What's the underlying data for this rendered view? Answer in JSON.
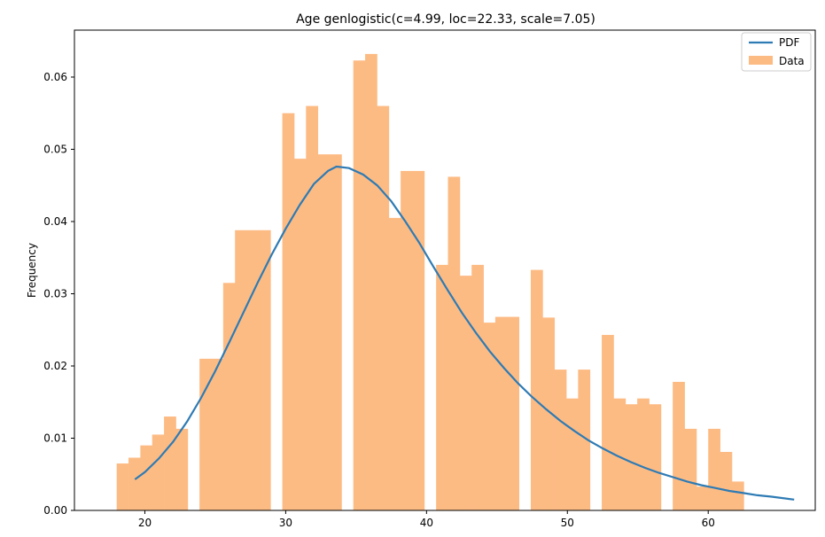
{
  "chart_data": {
    "type": "bar",
    "title": "Age genlogistic(c=4.99, loc=22.33, scale=7.05)",
    "xlabel": "",
    "ylabel": "Frequency",
    "xlim": [
      15.0,
      67.6
    ],
    "ylim": [
      0.0,
      0.0665
    ],
    "xticks": [
      20,
      30,
      40,
      50,
      60
    ],
    "yticks": [
      0.0,
      0.01,
      0.02,
      0.03,
      0.04,
      0.05,
      0.06
    ],
    "ytick_labels": [
      "0.00",
      "0.01",
      "0.02",
      "0.03",
      "0.04",
      "0.05",
      "0.06"
    ],
    "grid": false,
    "legend": {
      "placement": "top-right",
      "entries": [
        "PDF",
        "Data"
      ]
    },
    "colors": {
      "pdf": "#2e7bb4",
      "data": "#fdbb84"
    },
    "histogram": {
      "name": "Data",
      "bin_start": 18.0,
      "bin_width": 0.84,
      "values": [
        0.0065,
        0.0073,
        0.009,
        0.0105,
        0.013,
        0.0113,
        0.0,
        0.021,
        0.021,
        0.0315,
        0.0388,
        0.0388,
        0.0388,
        0.0,
        0.055,
        0.0487,
        0.056,
        0.0493,
        0.0493,
        0.0,
        0.0623,
        0.0632,
        0.056,
        0.0405,
        0.047,
        0.047,
        0.0,
        0.034,
        0.0462,
        0.0325,
        0.034,
        0.026,
        0.0268,
        0.0268,
        0.0,
        0.0333,
        0.0267,
        0.0195,
        0.0155,
        0.0195,
        0.0,
        0.0243,
        0.0155,
        0.0147,
        0.0155,
        0.0147,
        0.0,
        0.0178,
        0.0113,
        0.0033,
        0.0113,
        0.0081,
        0.004
      ]
    },
    "pdf": {
      "name": "PDF",
      "x": [
        19.3,
        20.0,
        21.0,
        22.0,
        23.0,
        24.0,
        25.0,
        26.0,
        27.0,
        28.0,
        29.0,
        30.0,
        31.0,
        32.0,
        33.0,
        33.6,
        34.5,
        35.5,
        36.5,
        37.5,
        38.5,
        39.5,
        40.5,
        41.5,
        42.5,
        43.5,
        44.5,
        45.5,
        46.5,
        47.5,
        48.5,
        49.5,
        50.5,
        51.5,
        52.5,
        53.5,
        54.5,
        55.5,
        56.5,
        57.5,
        58.5,
        59.5,
        60.5,
        61.5,
        62.5,
        63.5,
        64.5,
        66.1
      ],
      "y": [
        0.0043,
        0.0053,
        0.0072,
        0.0095,
        0.0123,
        0.0156,
        0.0193,
        0.0233,
        0.0274,
        0.0315,
        0.0354,
        0.039,
        0.0423,
        0.0452,
        0.047,
        0.0476,
        0.0474,
        0.0465,
        0.045,
        0.0428,
        0.04,
        0.037,
        0.0337,
        0.0305,
        0.0274,
        0.0246,
        0.022,
        0.0197,
        0.0176,
        0.0157,
        0.014,
        0.0124,
        0.011,
        0.0097,
        0.0086,
        0.0076,
        0.0067,
        0.0059,
        0.0052,
        0.0046,
        0.004,
        0.0035,
        0.0031,
        0.0027,
        0.0024,
        0.0021,
        0.0019,
        0.0015
      ]
    }
  }
}
